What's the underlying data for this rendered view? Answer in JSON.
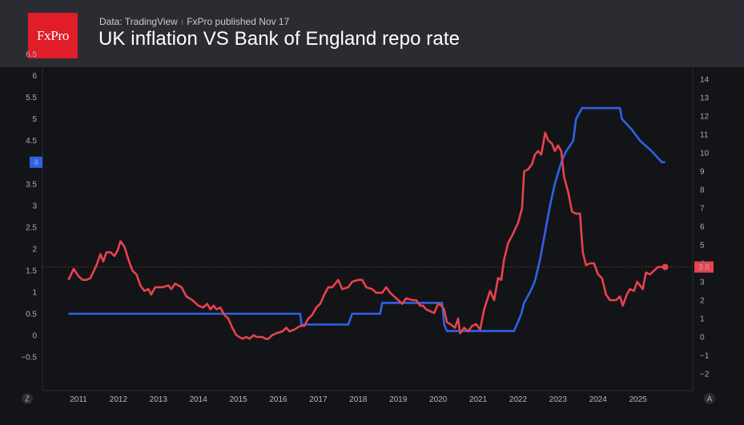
{
  "header": {
    "logo_text": "FxPro",
    "source": "Data: TradingView",
    "publisher": "FxPro published Nov 17",
    "title": "UK inflation VS Bank of England repo rate"
  },
  "axis_corner_left": "Z",
  "axis_corner_right": "A",
  "chart_data": {
    "type": "line",
    "title": "UK inflation VS Bank of England repo rate",
    "x_ticks": [
      "2011",
      "2012",
      "2013",
      "2014",
      "2015",
      "2016",
      "2017",
      "2018",
      "2019",
      "2020",
      "2021",
      "2022",
      "2023",
      "2024",
      "2025"
    ],
    "left_axis": {
      "ticks": [
        "6.5",
        "6",
        "5.5",
        "5",
        "4.5",
        "4",
        "3.5",
        "3",
        "2.5",
        "2",
        "1.5",
        "1",
        "0.5",
        "0",
        "−0.5"
      ],
      "ylim": [
        -0.5,
        6.5
      ],
      "last_value_label": "4"
    },
    "right_axis": {
      "ticks": [
        "14",
        "13",
        "12",
        "11",
        "10",
        "9",
        "8",
        "7",
        "6",
        "5",
        "4",
        "3",
        "2",
        "1",
        "0",
        "−1",
        "−2"
      ],
      "ylim": [
        -2,
        14
      ],
      "last_value_label": "3.8"
    },
    "colors": {
      "repo_rate": "#2f62e8",
      "inflation": "#e8424e"
    },
    "series": [
      {
        "axis": "left",
        "points": [
          [
            2010.75,
            0.5
          ],
          [
            2016.55,
            0.5
          ],
          [
            2016.58,
            0.25
          ],
          [
            2017.75,
            0.25
          ],
          [
            2017.85,
            0.5
          ],
          [
            2018.55,
            0.5
          ],
          [
            2018.6,
            0.75
          ],
          [
            2020.1,
            0.75
          ],
          [
            2020.15,
            0.25
          ],
          [
            2020.22,
            0.1
          ],
          [
            2021.9,
            0.1
          ],
          [
            2021.97,
            0.25
          ],
          [
            2022.08,
            0.5
          ],
          [
            2022.15,
            0.75
          ],
          [
            2022.3,
            1.0
          ],
          [
            2022.42,
            1.25
          ],
          [
            2022.55,
            1.75
          ],
          [
            2022.65,
            2.25
          ],
          [
            2022.8,
            3.0
          ],
          [
            2022.92,
            3.5
          ],
          [
            2023.08,
            4.0
          ],
          [
            2023.2,
            4.25
          ],
          [
            2023.38,
            4.5
          ],
          [
            2023.45,
            5.0
          ],
          [
            2023.6,
            5.25
          ],
          [
            2024.55,
            5.25
          ],
          [
            2024.6,
            5.0
          ],
          [
            2024.85,
            4.75
          ],
          [
            2025.05,
            4.5
          ],
          [
            2025.35,
            4.25
          ],
          [
            2025.6,
            4.0
          ],
          [
            2025.68,
            4.0
          ]
        ]
      },
      {
        "axis": "right",
        "points": [
          [
            2010.75,
            3.1
          ],
          [
            2010.88,
            3.7
          ],
          [
            2011.0,
            3.3
          ],
          [
            2011.1,
            3.1
          ],
          [
            2011.2,
            3.1
          ],
          [
            2011.3,
            3.2
          ],
          [
            2011.45,
            3.9
          ],
          [
            2011.55,
            4.5
          ],
          [
            2011.62,
            4.1
          ],
          [
            2011.7,
            4.6
          ],
          [
            2011.8,
            4.6
          ],
          [
            2011.9,
            4.4
          ],
          [
            2011.98,
            4.7
          ],
          [
            2012.05,
            5.2
          ],
          [
            2012.15,
            4.9
          ],
          [
            2012.25,
            4.2
          ],
          [
            2012.35,
            3.6
          ],
          [
            2012.45,
            3.4
          ],
          [
            2012.55,
            2.8
          ],
          [
            2012.65,
            2.5
          ],
          [
            2012.75,
            2.6
          ],
          [
            2012.82,
            2.3
          ],
          [
            2012.92,
            2.7
          ],
          [
            2013.1,
            2.7
          ],
          [
            2013.25,
            2.8
          ],
          [
            2013.32,
            2.6
          ],
          [
            2013.42,
            2.9
          ],
          [
            2013.5,
            2.8
          ],
          [
            2013.58,
            2.7
          ],
          [
            2013.7,
            2.2
          ],
          [
            2013.85,
            2.0
          ],
          [
            2014.0,
            1.7
          ],
          [
            2014.12,
            1.6
          ],
          [
            2014.22,
            1.8
          ],
          [
            2014.3,
            1.5
          ],
          [
            2014.38,
            1.7
          ],
          [
            2014.45,
            1.5
          ],
          [
            2014.55,
            1.6
          ],
          [
            2014.65,
            1.2
          ],
          [
            2014.75,
            1.0
          ],
          [
            2014.85,
            0.5
          ],
          [
            2014.95,
            0.1
          ],
          [
            2015.1,
            -0.1
          ],
          [
            2015.2,
            0.0
          ],
          [
            2015.28,
            -0.1
          ],
          [
            2015.38,
            0.1
          ],
          [
            2015.45,
            0.0
          ],
          [
            2015.6,
            0.0
          ],
          [
            2015.68,
            -0.1
          ],
          [
            2015.75,
            -0.1
          ],
          [
            2015.85,
            0.1
          ],
          [
            2015.95,
            0.2
          ],
          [
            2016.1,
            0.3
          ],
          [
            2016.2,
            0.5
          ],
          [
            2016.28,
            0.3
          ],
          [
            2016.4,
            0.4
          ],
          [
            2016.55,
            0.6
          ],
          [
            2016.65,
            0.6
          ],
          [
            2016.75,
            1.0
          ],
          [
            2016.85,
            1.2
          ],
          [
            2016.95,
            1.6
          ],
          [
            2017.05,
            1.8
          ],
          [
            2017.15,
            2.3
          ],
          [
            2017.25,
            2.7
          ],
          [
            2017.35,
            2.7
          ],
          [
            2017.5,
            3.1
          ],
          [
            2017.6,
            2.6
          ],
          [
            2017.75,
            2.7
          ],
          [
            2017.85,
            3.0
          ],
          [
            2018.0,
            3.1
          ],
          [
            2018.1,
            3.1
          ],
          [
            2018.2,
            2.7
          ],
          [
            2018.35,
            2.6
          ],
          [
            2018.45,
            2.4
          ],
          [
            2018.6,
            2.4
          ],
          [
            2018.7,
            2.7
          ],
          [
            2018.8,
            2.4
          ],
          [
            2018.9,
            2.2
          ],
          [
            2019.0,
            2.0
          ],
          [
            2019.1,
            1.8
          ],
          [
            2019.2,
            2.1
          ],
          [
            2019.35,
            2.0
          ],
          [
            2019.45,
            2.0
          ],
          [
            2019.55,
            1.7
          ],
          [
            2019.62,
            1.7
          ],
          [
            2019.7,
            1.5
          ],
          [
            2019.8,
            1.4
          ],
          [
            2019.9,
            1.3
          ],
          [
            2020.0,
            1.8
          ],
          [
            2020.08,
            1.7
          ],
          [
            2020.15,
            1.5
          ],
          [
            2020.22,
            0.8
          ],
          [
            2020.3,
            0.7
          ],
          [
            2020.42,
            0.5
          ],
          [
            2020.5,
            1.0
          ],
          [
            2020.55,
            0.2
          ],
          [
            2020.65,
            0.5
          ],
          [
            2020.75,
            0.3
          ],
          [
            2020.85,
            0.6
          ],
          [
            2020.95,
            0.7
          ],
          [
            2021.05,
            0.4
          ],
          [
            2021.15,
            1.5
          ],
          [
            2021.3,
            2.5
          ],
          [
            2021.4,
            2.0
          ],
          [
            2021.5,
            3.2
          ],
          [
            2021.58,
            3.1
          ],
          [
            2021.65,
            4.2
          ],
          [
            2021.75,
            5.1
          ],
          [
            2021.85,
            5.5
          ],
          [
            2022.0,
            6.2
          ],
          [
            2022.1,
            7.0
          ],
          [
            2022.15,
            9.0
          ],
          [
            2022.25,
            9.1
          ],
          [
            2022.35,
            9.4
          ],
          [
            2022.42,
            9.9
          ],
          [
            2022.5,
            10.1
          ],
          [
            2022.58,
            9.9
          ],
          [
            2022.68,
            11.1
          ],
          [
            2022.75,
            10.7
          ],
          [
            2022.85,
            10.5
          ],
          [
            2022.92,
            10.1
          ],
          [
            2023.0,
            10.4
          ],
          [
            2023.08,
            10.1
          ],
          [
            2023.15,
            8.7
          ],
          [
            2023.25,
            7.9
          ],
          [
            2023.35,
            6.8
          ],
          [
            2023.45,
            6.7
          ],
          [
            2023.55,
            6.7
          ],
          [
            2023.62,
            4.6
          ],
          [
            2023.7,
            3.9
          ],
          [
            2023.8,
            4.0
          ],
          [
            2023.9,
            4.0
          ],
          [
            2024.0,
            3.4
          ],
          [
            2024.1,
            3.2
          ],
          [
            2024.2,
            2.3
          ],
          [
            2024.3,
            2.0
          ],
          [
            2024.45,
            2.0
          ],
          [
            2024.55,
            2.2
          ],
          [
            2024.62,
            1.7
          ],
          [
            2024.72,
            2.3
          ],
          [
            2024.8,
            2.6
          ],
          [
            2024.9,
            2.5
          ],
          [
            2024.98,
            3.0
          ],
          [
            2025.05,
            2.8
          ],
          [
            2025.12,
            2.6
          ],
          [
            2025.2,
            3.5
          ],
          [
            2025.3,
            3.4
          ],
          [
            2025.4,
            3.6
          ],
          [
            2025.5,
            3.8
          ],
          [
            2025.62,
            3.8
          ],
          [
            2025.68,
            3.8
          ]
        ]
      }
    ]
  }
}
